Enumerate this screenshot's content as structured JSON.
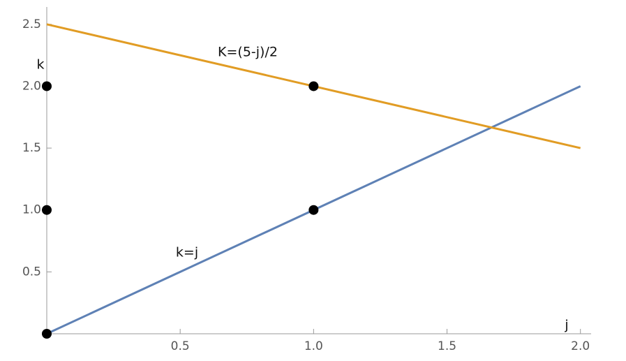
{
  "chart_data": {
    "type": "line",
    "x_label": "j",
    "y_label": "k",
    "xlim": [
      0,
      2.04
    ],
    "ylim": [
      0,
      2.64
    ],
    "xticks": [
      0.5,
      {
        "value": 1,
        "label": "1.0"
      },
      1.5,
      {
        "value": 2,
        "label": "2.0"
      }
    ],
    "yticks": [
      0.5,
      {
        "value": 1,
        "label": "1.0"
      },
      1.5,
      {
        "value": 2,
        "label": "2.0"
      },
      2.5
    ],
    "series": [
      {
        "name": "k=j",
        "color": "#5e81b5",
        "x": [
          0,
          2
        ],
        "values": [
          0,
          2
        ]
      },
      {
        "name": "K=(5-j)/2",
        "color": "#e19c24",
        "x": [
          0,
          2
        ],
        "values": [
          2.5,
          1.5
        ]
      }
    ],
    "points": {
      "color": "#000000",
      "x": [
        0,
        0,
        0,
        1,
        1
      ],
      "values": [
        0,
        1,
        2,
        1,
        2
      ]
    }
  }
}
